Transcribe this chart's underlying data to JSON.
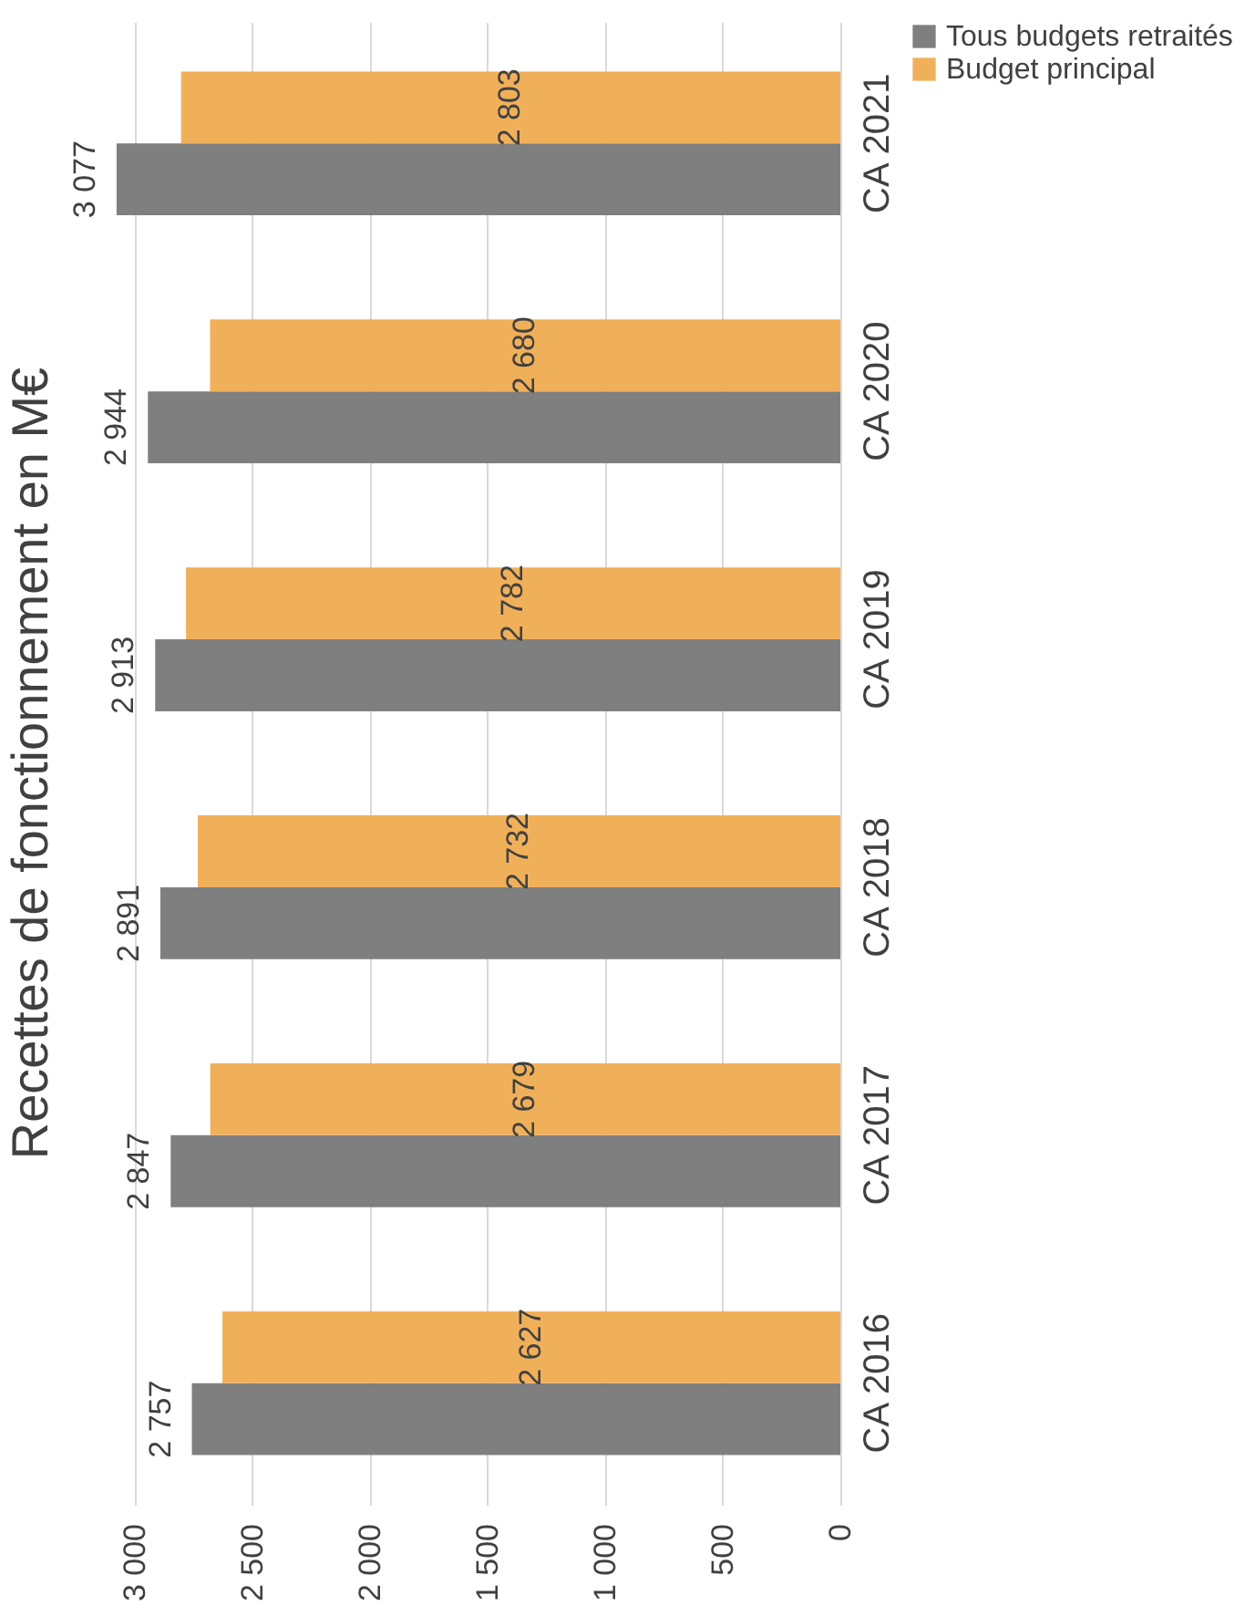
{
  "chart_data": {
    "type": "bar",
    "orientation": "horizontal",
    "title": "Recettes de fonctionnement en M€",
    "categories": [
      "CA 2021",
      "CA 2020",
      "CA 2019",
      "CA 2018",
      "CA 2017",
      "CA 2016"
    ],
    "series": [
      {
        "name": "Tous budgets retraités",
        "color": "#7f7f7f",
        "values": [
          3077,
          2944,
          2913,
          2891,
          2847,
          2757
        ],
        "value_labels": [
          "3 077",
          "2 944",
          "2 913",
          "2 891",
          "2 847",
          "2 757"
        ]
      },
      {
        "name": "Budget principal",
        "color": "#f0b05a",
        "values": [
          2803,
          2680,
          2782,
          2732,
          2679,
          2627
        ],
        "value_labels": [
          "2 803",
          "2 680",
          "2 782",
          "2 732",
          "2 679",
          "2 627"
        ]
      }
    ],
    "xlim": [
      3100,
      0
    ],
    "xticks": [
      {
        "value": 3000,
        "label": "3 000"
      },
      {
        "value": 2500,
        "label": "2 500"
      },
      {
        "value": 2000,
        "label": "2 000"
      },
      {
        "value": 1500,
        "label": "1 500"
      },
      {
        "value": 1000,
        "label": "1 000"
      },
      {
        "value": 500,
        "label": "500"
      },
      {
        "value": 0,
        "label": "0"
      }
    ],
    "grid": "x",
    "legend": "right"
  }
}
